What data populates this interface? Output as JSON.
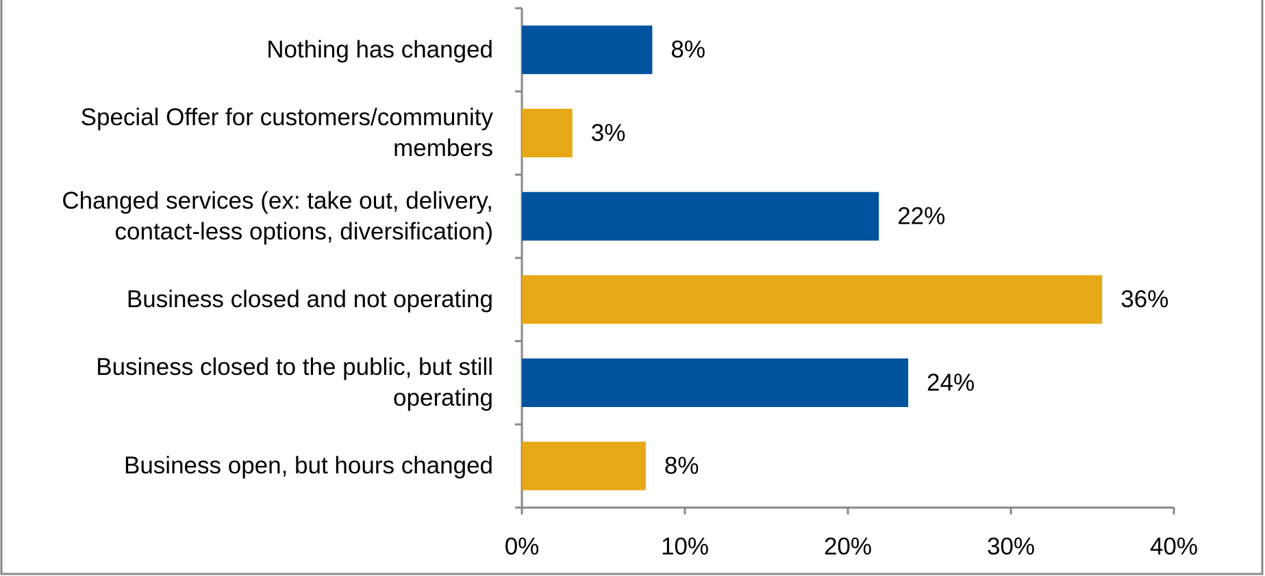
{
  "chart_data": {
    "type": "hbar",
    "categories": [
      "Nothing has changed",
      "Special Offer for customers/community\nmembers",
      "Changed services (ex: take out, delivery,\ncontact-less options, diversification)",
      "Business closed and not operating",
      "Business closed to the public, but still\noperating",
      "Business open, but hours changed"
    ],
    "values": [
      8,
      3.1,
      21.9,
      35.6,
      23.7,
      7.6
    ],
    "value_labels": [
      "8%",
      "3%",
      "22%",
      "36%",
      "24%",
      "8%"
    ],
    "colors": [
      "#00539f",
      "#e6a817",
      "#00539f",
      "#e6a817",
      "#00539f",
      "#e6a817"
    ],
    "xlim": [
      0,
      40
    ],
    "xticks": [
      {
        "value": 0,
        "label": "0%"
      },
      {
        "value": 10,
        "label": "10%"
      },
      {
        "value": 20,
        "label": "20%"
      },
      {
        "value": 30,
        "label": "30%"
      },
      {
        "value": 40,
        "label": "40%"
      }
    ]
  }
}
